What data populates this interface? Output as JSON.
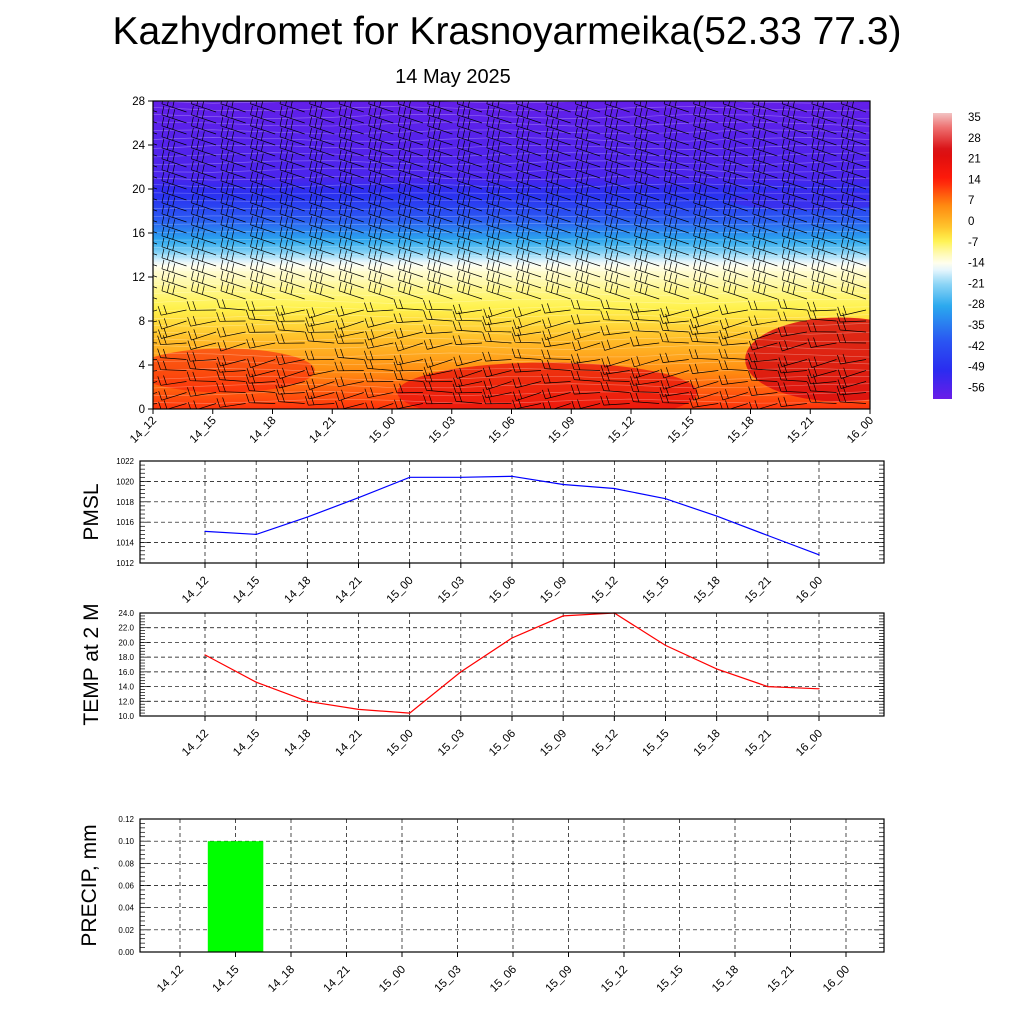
{
  "title": "Kazhydromet for Krasnoyarmeika(52.33 77.3)",
  "subtitle": "14 May 2025",
  "time_labels": [
    "14_12",
    "14_15",
    "14_18",
    "14_21",
    "15_00",
    "15_03",
    "15_06",
    "15_09",
    "15_12",
    "15_15",
    "15_18",
    "15_21",
    "16_00"
  ],
  "chart_data": [
    {
      "type": "heatmap",
      "description_kind": "time-height temperature cross-section with wind barbs",
      "x": [
        "14_12",
        "14_15",
        "14_18",
        "14_21",
        "15_00",
        "15_03",
        "15_06",
        "15_09",
        "15_12",
        "15_15",
        "15_18",
        "15_21",
        "16_00"
      ],
      "y_ticks": [
        0,
        4,
        8,
        12,
        16,
        20,
        24,
        28
      ],
      "ylim": [
        0,
        28
      ],
      "colorbar_labels": [
        "35",
        "28",
        "21",
        "14",
        "7",
        "0",
        "-7",
        "-14",
        "-21",
        "-28",
        "-35",
        "-42",
        "-49",
        "-56"
      ],
      "colorbar_range": [
        -60,
        39
      ],
      "colors": {
        "cold": "#6a1de8",
        "blue": "#2a2cf0",
        "cyan": "#2aa8ee",
        "white": "#ffffff",
        "yellow": "#fff24a",
        "orange": "#ff8a10",
        "red": "#ff1a0a",
        "darkred": "#d80c10"
      },
      "temperature_profile": [
        {
          "height": 0,
          "temp": 14
        },
        {
          "height": 2,
          "temp": 10
        },
        {
          "height": 5,
          "temp": 3
        },
        {
          "height": 8,
          "temp": -3
        },
        {
          "height": 11,
          "temp": -8
        },
        {
          "height": 12.8,
          "temp": -12
        },
        {
          "height": 13.5,
          "temp": -16
        },
        {
          "height": 15,
          "temp": -26
        },
        {
          "height": 17,
          "temp": -38
        },
        {
          "height": 19,
          "temp": -47
        },
        {
          "height": 21,
          "temp": -55
        },
        {
          "height": 25,
          "temp": -57
        },
        {
          "height": 28,
          "temp": -59
        }
      ],
      "barb_heights": [
        0.5,
        1.5,
        2.5,
        3.5,
        4.5,
        6,
        7,
        8,
        9,
        10,
        11,
        12,
        13,
        14,
        15,
        16,
        17,
        18,
        19,
        20,
        21,
        22,
        23,
        24,
        25,
        26,
        27
      ],
      "grid": false
    },
    {
      "type": "line",
      "ylabel": "PMSL",
      "x": [
        "14_12",
        "14_15",
        "14_18",
        "14_21",
        "15_00",
        "15_03",
        "15_06",
        "15_09",
        "15_12",
        "15_15",
        "15_18",
        "15_21",
        "16_00"
      ],
      "ylim": [
        1012,
        1022
      ],
      "y_ticks": [
        1012,
        1014,
        1016,
        1018,
        1020,
        1022
      ],
      "y_tick_labels": [
        "1012",
        "1014",
        "1016",
        "1018",
        "1020",
        "1022"
      ],
      "series": [
        {
          "values": [
            1015.1,
            1014.8,
            1016.5,
            1018.4,
            1020.4,
            1020.4,
            1020.5,
            1019.7,
            1019.3,
            1018.3,
            1016.6,
            1014.7,
            1012.8
          ],
          "color": "#0000ff"
        }
      ],
      "grid": true
    },
    {
      "type": "line",
      "ylabel": "TEMP at 2 M",
      "x": [
        "14_12",
        "14_15",
        "14_18",
        "14_21",
        "15_00",
        "15_03",
        "15_06",
        "15_09",
        "15_12",
        "15_15",
        "15_18",
        "15_21",
        "16_00"
      ],
      "ylim": [
        10,
        24
      ],
      "y_ticks": [
        10,
        12,
        14,
        16,
        18,
        20,
        22,
        24
      ],
      "y_tick_labels": [
        "10.0",
        "12.0",
        "14.0",
        "16.0",
        "18.0",
        "20.0",
        "22.0",
        "24.0"
      ],
      "series": [
        {
          "values": [
            18.3,
            14.6,
            12.0,
            10.9,
            10.4,
            16.0,
            20.6,
            23.6,
            24.0,
            19.6,
            16.4,
            14.0,
            13.7
          ],
          "color": "#ff0000"
        }
      ],
      "grid": true
    },
    {
      "type": "bar",
      "ylabel": "PRECIP, mm",
      "categories": [
        "14_12",
        "14_15",
        "14_18",
        "14_21",
        "15_00",
        "15_03",
        "15_06",
        "15_09",
        "15_12",
        "15_15",
        "15_18",
        "15_21",
        "16_00"
      ],
      "ylim": [
        0,
        0.12
      ],
      "y_ticks": [
        0,
        0.02,
        0.04,
        0.06,
        0.08,
        0.1,
        0.12
      ],
      "y_tick_labels": [
        "0.00",
        "0.02",
        "0.04",
        "0.06",
        "0.08",
        "0.10",
        "0.12"
      ],
      "values": [
        0,
        0.1,
        0,
        0,
        0,
        0,
        0,
        0,
        0,
        0,
        0,
        0,
        0
      ],
      "color": "#00ff00",
      "grid": true
    }
  ]
}
